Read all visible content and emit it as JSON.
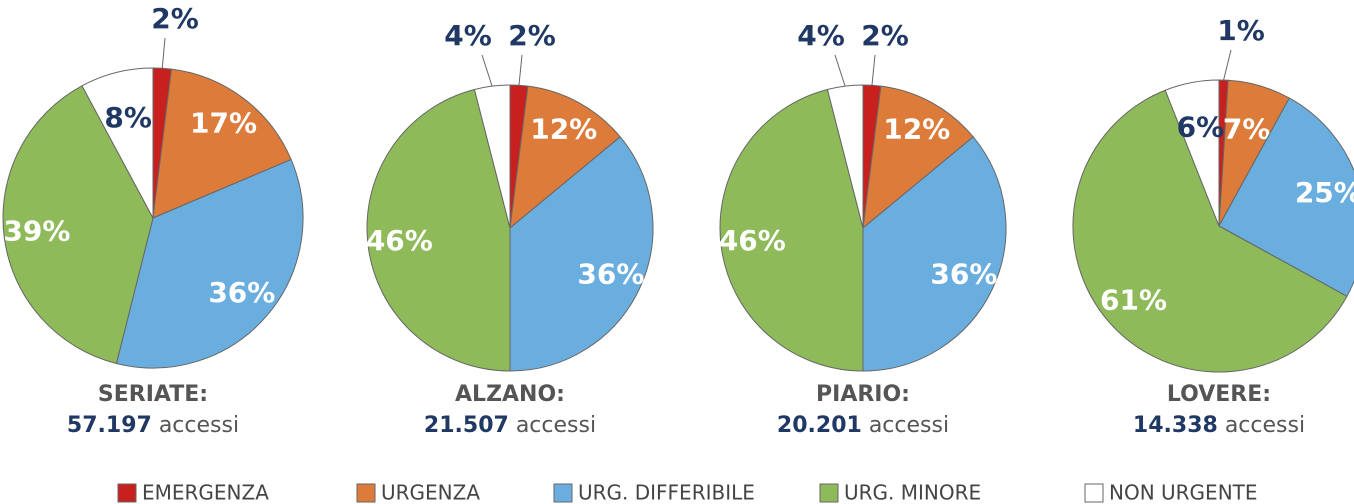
{
  "chart_data": [
    {
      "type": "pie",
      "title": "SERIATE:",
      "total": 57197,
      "total_label": "57.197",
      "unit": "accessi",
      "categories": [
        "EMERGENZA",
        "URGENZA",
        "URG. DIFFERIBILE",
        "URG. MINORE",
        "NON URGENTE"
      ],
      "colors": [
        "#c8201e",
        "#dc7b3a",
        "#6aaee0",
        "#8fba5a",
        "#ffffff"
      ],
      "values": [
        2,
        17,
        36,
        39,
        8
      ],
      "value_labels": [
        "2%",
        "17%",
        "36%",
        "39%",
        "8%"
      ]
    },
    {
      "type": "pie",
      "title": "ALZANO:",
      "total": 21507,
      "total_label": "21.507",
      "unit": "accessi",
      "categories": [
        "EMERGENZA",
        "URGENZA",
        "URG. DIFFERIBILE",
        "URG. MINORE",
        "NON URGENTE"
      ],
      "colors": [
        "#c8201e",
        "#dc7b3a",
        "#6aaee0",
        "#8fba5a",
        "#ffffff"
      ],
      "values": [
        2,
        12,
        36,
        46,
        4
      ],
      "value_labels": [
        "2%",
        "12%",
        "36%",
        "46%",
        "4%"
      ]
    },
    {
      "type": "pie",
      "title": "PIARIO:",
      "total": 20201,
      "total_label": "20.201",
      "unit": "accessi",
      "categories": [
        "EMERGENZA",
        "URGENZA",
        "URG. DIFFERIBILE",
        "URG. MINORE",
        "NON URGENTE"
      ],
      "colors": [
        "#c8201e",
        "#dc7b3a",
        "#6aaee0",
        "#8fba5a",
        "#ffffff"
      ],
      "values": [
        2,
        12,
        36,
        46,
        4
      ],
      "value_labels": [
        "2%",
        "12%",
        "36%",
        "46%",
        "4%"
      ]
    },
    {
      "type": "pie",
      "title": "LOVERE:",
      "total": 14338,
      "total_label": "14.338",
      "unit": "accessi",
      "categories": [
        "EMERGENZA",
        "URGENZA",
        "URG. DIFFERIBILE",
        "URG. MINORE",
        "NON URGENTE"
      ],
      "colors": [
        "#c8201e",
        "#dc7b3a",
        "#6aaee0",
        "#8fba5a",
        "#ffffff"
      ],
      "values": [
        1,
        7,
        25,
        61,
        6
      ],
      "value_labels": [
        "1%",
        "7%",
        "25%",
        "61%",
        "6%"
      ]
    }
  ]
}
